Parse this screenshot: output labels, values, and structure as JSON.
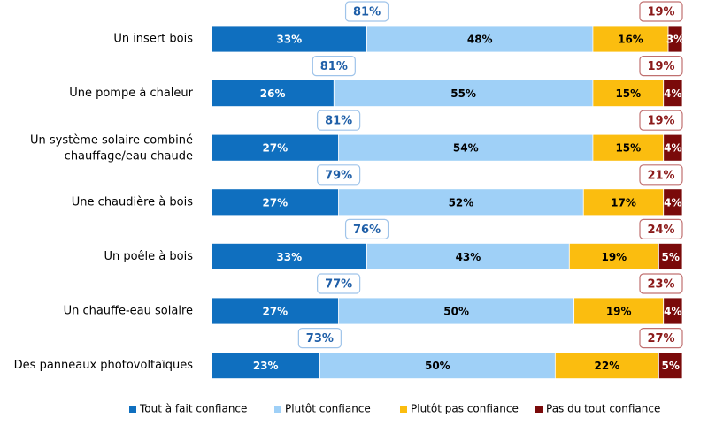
{
  "chart_data": {
    "type": "bar",
    "orientation": "horizontal",
    "stacked": true,
    "xlim": [
      0,
      100
    ],
    "categories": [
      "Un insert bois",
      "Une pompe à chaleur",
      "Un système solaire combiné chauffage/eau chaude",
      "Une chaudière à bois",
      "Un poêle à bois",
      "Un chauffe-eau solaire",
      "Des panneaux photovoltaïques"
    ],
    "series": [
      {
        "name": "Tout à fait confiance",
        "color": "#0f6fbf",
        "values": [
          33,
          26,
          27,
          27,
          33,
          27,
          23
        ]
      },
      {
        "name": "Plutôt confiance",
        "color": "#9fd0f7",
        "values": [
          48,
          55,
          54,
          52,
          43,
          50,
          50
        ]
      },
      {
        "name": "Plutôt pas confiance",
        "color": "#fbbd0f",
        "values": [
          16,
          15,
          15,
          17,
          19,
          19,
          22
        ]
      },
      {
        "name": "Pas du tout confiance",
        "color": "#7a0a0a",
        "values": [
          3,
          4,
          4,
          4,
          5,
          4,
          5
        ]
      }
    ],
    "totals_confiance": [
      81,
      81,
      81,
      79,
      76,
      77,
      73
    ],
    "totals_pas_confiance": [
      19,
      19,
      19,
      21,
      24,
      23,
      27
    ],
    "totals_confiance_color": "#1f5fa8",
    "totals_pas_confiance_color": "#8b1a1a",
    "legend_position": "bottom",
    "value_suffix": "%"
  }
}
